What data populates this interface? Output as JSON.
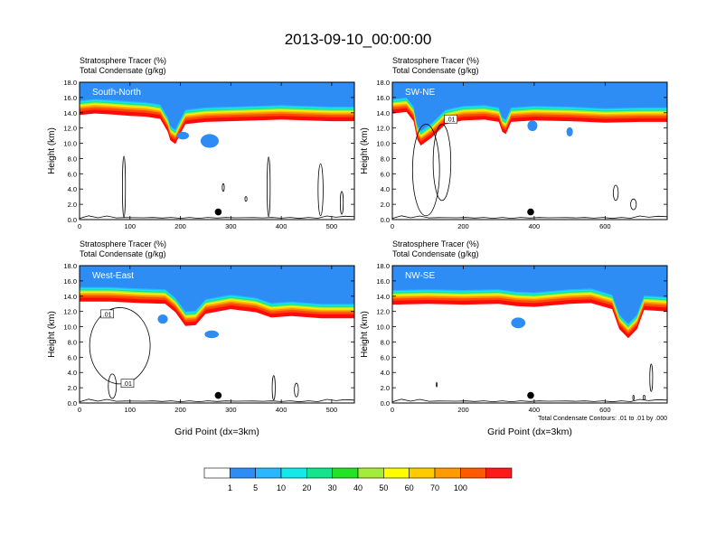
{
  "title": "2013-09-10_00:00:00",
  "chart_data": [
    {
      "type": "contour",
      "panel": "South-North",
      "field_label": "Stratosphere Tracer",
      "field_units": "(%)",
      "contour_label": "Total Condensate",
      "contour_units": "(g/kg)",
      "ylabel": "Height (km)",
      "xlabel": "",
      "xlim": [
        0,
        545
      ],
      "ylim": [
        0,
        18
      ],
      "xticks": [
        0,
        100,
        200,
        300,
        400,
        500
      ],
      "yticks": [
        "0.0",
        "2.0",
        "4.0",
        "6.0",
        "8.0",
        "10.0",
        "12.0",
        "14.0",
        "16.0",
        "18.0"
      ],
      "marker": {
        "x": 275,
        "y": 1.0
      },
      "boundary": [
        [
          0,
          15.0
        ],
        [
          30,
          15.2
        ],
        [
          60,
          15.1
        ],
        [
          100,
          14.9
        ],
        [
          130,
          14.8
        ],
        [
          160,
          14.5
        ],
        [
          175,
          12.8
        ],
        [
          180,
          11.7
        ],
        [
          190,
          11.2
        ],
        [
          198,
          12.3
        ],
        [
          210,
          13.8
        ],
        [
          250,
          14.1
        ],
        [
          300,
          14.2
        ],
        [
          350,
          14.3
        ],
        [
          400,
          14.4
        ],
        [
          450,
          14.3
        ],
        [
          500,
          14.2
        ],
        [
          545,
          14.2
        ]
      ],
      "blobs": [
        {
          "x": 258,
          "y": 10.3,
          "rx": 18,
          "ry": 0.9
        },
        {
          "x": 205,
          "y": 11.0,
          "rx": 12,
          "ry": 0.5
        }
      ],
      "contours": [
        {
          "x": 88,
          "y": 4.3,
          "rx": 3,
          "ry": 4.0
        },
        {
          "x": 375,
          "y": 4.3,
          "rx": 3,
          "ry": 3.9
        },
        {
          "x": 478,
          "y": 3.9,
          "rx": 5,
          "ry": 3.4
        },
        {
          "x": 520,
          "y": 2.2,
          "rx": 3,
          "ry": 1.5
        },
        {
          "x": 285,
          "y": 4.2,
          "rx": 2,
          "ry": 0.5
        },
        {
          "x": 330,
          "y": 2.7,
          "rx": 2,
          "ry": 0.3
        }
      ]
    },
    {
      "type": "contour",
      "panel": "SW-NE",
      "field_label": "Stratosphere Tracer",
      "field_units": "(%)",
      "contour_label": "Total Condensate",
      "contour_units": "(g/kg)",
      "ylabel": "Height (km)",
      "xlabel": "",
      "xlim": [
        0,
        775
      ],
      "ylim": [
        0,
        18
      ],
      "xticks": [
        0,
        200,
        400,
        600
      ],
      "yticks": [
        "0.0",
        "2.0",
        "4.0",
        "6.0",
        "8.0",
        "10.0",
        "12.0",
        "14.0",
        "16.0",
        "18.0"
      ],
      "marker": {
        "x": 390,
        "y": 1.0
      },
      "contour_label_value": ".01",
      "boundary": [
        [
          0,
          15.2
        ],
        [
          40,
          15.4
        ],
        [
          60,
          14.2
        ],
        [
          70,
          11.8
        ],
        [
          80,
          11.0
        ],
        [
          110,
          12.0
        ],
        [
          150,
          13.8
        ],
        [
          200,
          14.3
        ],
        [
          260,
          14.4
        ],
        [
          300,
          14.1
        ],
        [
          310,
          12.8
        ],
        [
          320,
          12.5
        ],
        [
          335,
          14.1
        ],
        [
          400,
          14.3
        ],
        [
          500,
          14.2
        ],
        [
          600,
          14.0
        ],
        [
          700,
          14.1
        ],
        [
          775,
          14.1
        ]
      ],
      "blobs": [
        {
          "x": 395,
          "y": 12.3,
          "rx": 14,
          "ry": 0.7
        },
        {
          "x": 500,
          "y": 11.5,
          "rx": 9,
          "ry": 0.6
        }
      ],
      "contours": [
        {
          "x": 95,
          "y": 6.5,
          "rx": 38,
          "ry": 6.0
        },
        {
          "x": 140,
          "y": 7.5,
          "rx": 25,
          "ry": 5.0
        },
        {
          "x": 630,
          "y": 3.5,
          "rx": 7,
          "ry": 1.0
        },
        {
          "x": 680,
          "y": 2.0,
          "rx": 8,
          "ry": 0.7
        }
      ]
    },
    {
      "type": "contour",
      "panel": "West-East",
      "field_label": "Stratosphere Tracer",
      "field_units": "(%)",
      "contour_label": "Total Condensate",
      "contour_units": "(g/kg)",
      "ylabel": "Height (km)",
      "xlabel": "Grid Point (dx=3km)",
      "xlim": [
        0,
        545
      ],
      "ylim": [
        0,
        18
      ],
      "xticks": [
        0,
        100,
        200,
        300,
        400,
        500
      ],
      "yticks": [
        "0.0",
        "2.0",
        "4.0",
        "6.0",
        "8.0",
        "10.0",
        "12.0",
        "14.0",
        "16.0",
        "18.0"
      ],
      "marker": {
        "x": 275,
        "y": 1.0
      },
      "contour_labels": [
        ".01",
        ".01"
      ],
      "boundary": [
        [
          0,
          14.6
        ],
        [
          60,
          14.6
        ],
        [
          120,
          14.4
        ],
        [
          170,
          14.3
        ],
        [
          190,
          13.2
        ],
        [
          210,
          11.4
        ],
        [
          230,
          11.5
        ],
        [
          250,
          13.0
        ],
        [
          300,
          13.6
        ],
        [
          350,
          13.2
        ],
        [
          380,
          12.5
        ],
        [
          420,
          12.7
        ],
        [
          480,
          12.4
        ],
        [
          545,
          12.4
        ]
      ],
      "blobs": [
        {
          "x": 165,
          "y": 11.0,
          "rx": 10,
          "ry": 0.6
        },
        {
          "x": 262,
          "y": 9.0,
          "rx": 14,
          "ry": 0.5
        }
      ],
      "contours": [
        {
          "x": 80,
          "y": 7.5,
          "rx": 60,
          "ry": 5.0
        },
        {
          "x": 65,
          "y": 2.2,
          "rx": 8,
          "ry": 1.6
        },
        {
          "x": 385,
          "y": 2.0,
          "rx": 3,
          "ry": 1.6
        },
        {
          "x": 430,
          "y": 1.7,
          "rx": 4,
          "ry": 0.9
        }
      ]
    },
    {
      "type": "contour",
      "panel": "NW-SE",
      "field_label": "Stratosphere Tracer",
      "field_units": "(%)",
      "contour_label": "Total Condensate",
      "contour_units": "(g/kg)",
      "ylabel": "Height (km)",
      "xlabel": "Grid Point (dx=3km)",
      "xlim": [
        0,
        775
      ],
      "ylim": [
        0,
        18
      ],
      "xticks": [
        0,
        200,
        400,
        600
      ],
      "yticks": [
        "0.0",
        "2.0",
        "4.0",
        "6.0",
        "8.0",
        "10.0",
        "12.0",
        "14.0",
        "16.0",
        "18.0"
      ],
      "marker": {
        "x": 390,
        "y": 1.0
      },
      "note": "Total Condensate Contours: .01 to .01 by .000",
      "boundary": [
        [
          0,
          14.2
        ],
        [
          100,
          14.3
        ],
        [
          200,
          14.2
        ],
        [
          300,
          14.3
        ],
        [
          350,
          14.0
        ],
        [
          400,
          13.9
        ],
        [
          500,
          14.3
        ],
        [
          560,
          14.4
        ],
        [
          620,
          13.6
        ],
        [
          640,
          11.0
        ],
        [
          665,
          9.8
        ],
        [
          690,
          11.0
        ],
        [
          710,
          13.5
        ],
        [
          775,
          13.3
        ]
      ],
      "blobs": [
        {
          "x": 355,
          "y": 10.5,
          "rx": 20,
          "ry": 0.7
        }
      ],
      "contours": [
        {
          "x": 730,
          "y": 3.3,
          "rx": 4,
          "ry": 1.8
        },
        {
          "x": 710,
          "y": 0.7,
          "rx": 3,
          "ry": 0.3
        },
        {
          "x": 680,
          "y": 0.7,
          "rx": 2,
          "ry": 0.3
        },
        {
          "x": 125,
          "y": 2.4,
          "rx": 1,
          "ry": 0.3
        }
      ]
    }
  ],
  "colorbar": {
    "labels": [
      "1",
      "5",
      "10",
      "20",
      "30",
      "40",
      "50",
      "60",
      "70",
      "100"
    ],
    "colors": [
      "#ffffff",
      "#2e8cf5",
      "#2bb7ff",
      "#13e9ea",
      "#14e48b",
      "#24e224",
      "#a4ec3a",
      "#fffd00",
      "#ffcb00",
      "#ff9a00",
      "#ff5a00",
      "#ff1a1a"
    ]
  }
}
